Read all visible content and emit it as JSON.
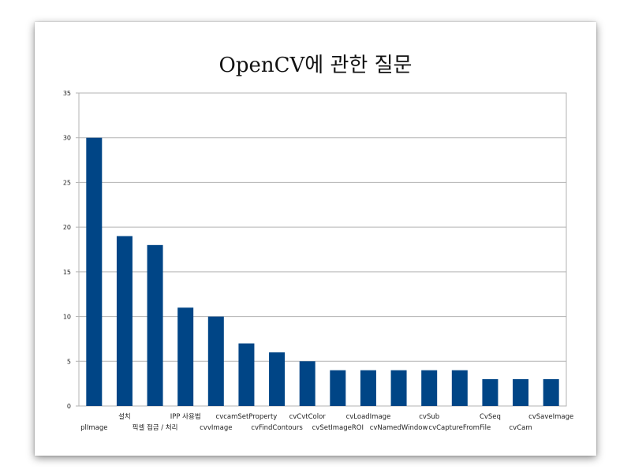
{
  "chart_data": {
    "type": "bar",
    "title": "OpenCV에 관한 질문",
    "xlabel": "",
    "ylabel": "",
    "ylim": [
      0,
      35
    ],
    "yticks": [
      0,
      5,
      10,
      15,
      20,
      25,
      30,
      35
    ],
    "grid": true,
    "legend": "none",
    "bar_color": "#004586",
    "categories": [
      "plImage",
      "설치",
      "픽셀 접금 / 처리",
      "IPP  사용법",
      "cvvImage",
      "cvcamSetProperty",
      "cvFindContours",
      "cvCvtColor",
      "cvSetImageROI",
      "cvLoadImage",
      "cvNamedWindow",
      "cvSub",
      "cvCaptureFromFile",
      "CvSeq",
      "cvCam",
      "cvSaveImage"
    ],
    "values": [
      30,
      19,
      18,
      11,
      10,
      7,
      6,
      5,
      4,
      4,
      4,
      4,
      4,
      3,
      3,
      3
    ]
  }
}
